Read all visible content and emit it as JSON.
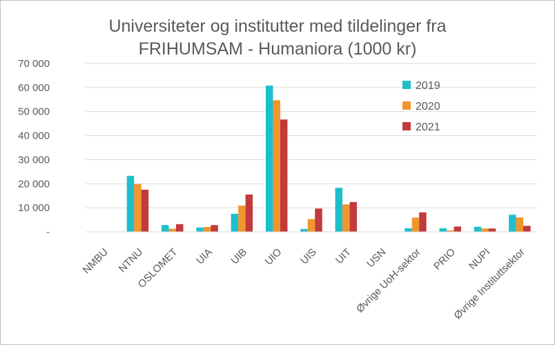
{
  "chart_data": {
    "type": "bar",
    "title_lines": [
      "Universiteter og institutter med tildelinger fra",
      "FRIHUMSAM - Humaniora (1000 kr)"
    ],
    "xlabel": "",
    "ylabel": "",
    "ylim": [
      0,
      70000
    ],
    "yticks": [
      {
        "value": 0,
        "label": "-"
      },
      {
        "value": 10000,
        "label": "10 000"
      },
      {
        "value": 20000,
        "label": "20 000"
      },
      {
        "value": 30000,
        "label": "30 000"
      },
      {
        "value": 40000,
        "label": "40 000"
      },
      {
        "value": 50000,
        "label": "50 000"
      },
      {
        "value": 60000,
        "label": "60 000"
      },
      {
        "value": 70000,
        "label": "70 000"
      }
    ],
    "grid": true,
    "legend_position": "top-right",
    "categories": [
      "NMBU",
      "NTNU",
      "OSLOMET",
      "UIA",
      "UIB",
      "UIO",
      "UIS",
      "UIT",
      "USN",
      "Øvrige UoH-sektor",
      "PRIO",
      "NUPI",
      "Øvrige Instituttsektor"
    ],
    "series": [
      {
        "name": "2019",
        "color": "#1ebfcd",
        "values": [
          0,
          23300,
          2800,
          1800,
          7500,
          60800,
          1200,
          18300,
          0,
          1500,
          1500,
          2100,
          7100
        ]
      },
      {
        "name": "2020",
        "color": "#f0962e",
        "values": [
          0,
          19900,
          1300,
          2000,
          10900,
          54700,
          5300,
          11400,
          0,
          5900,
          600,
          1400,
          6000
        ]
      },
      {
        "name": "2021",
        "color": "#c23a3b",
        "values": [
          0,
          17500,
          3200,
          2800,
          15500,
          46700,
          9700,
          12400,
          0,
          8100,
          2200,
          1400,
          2500
        ]
      }
    ]
  }
}
